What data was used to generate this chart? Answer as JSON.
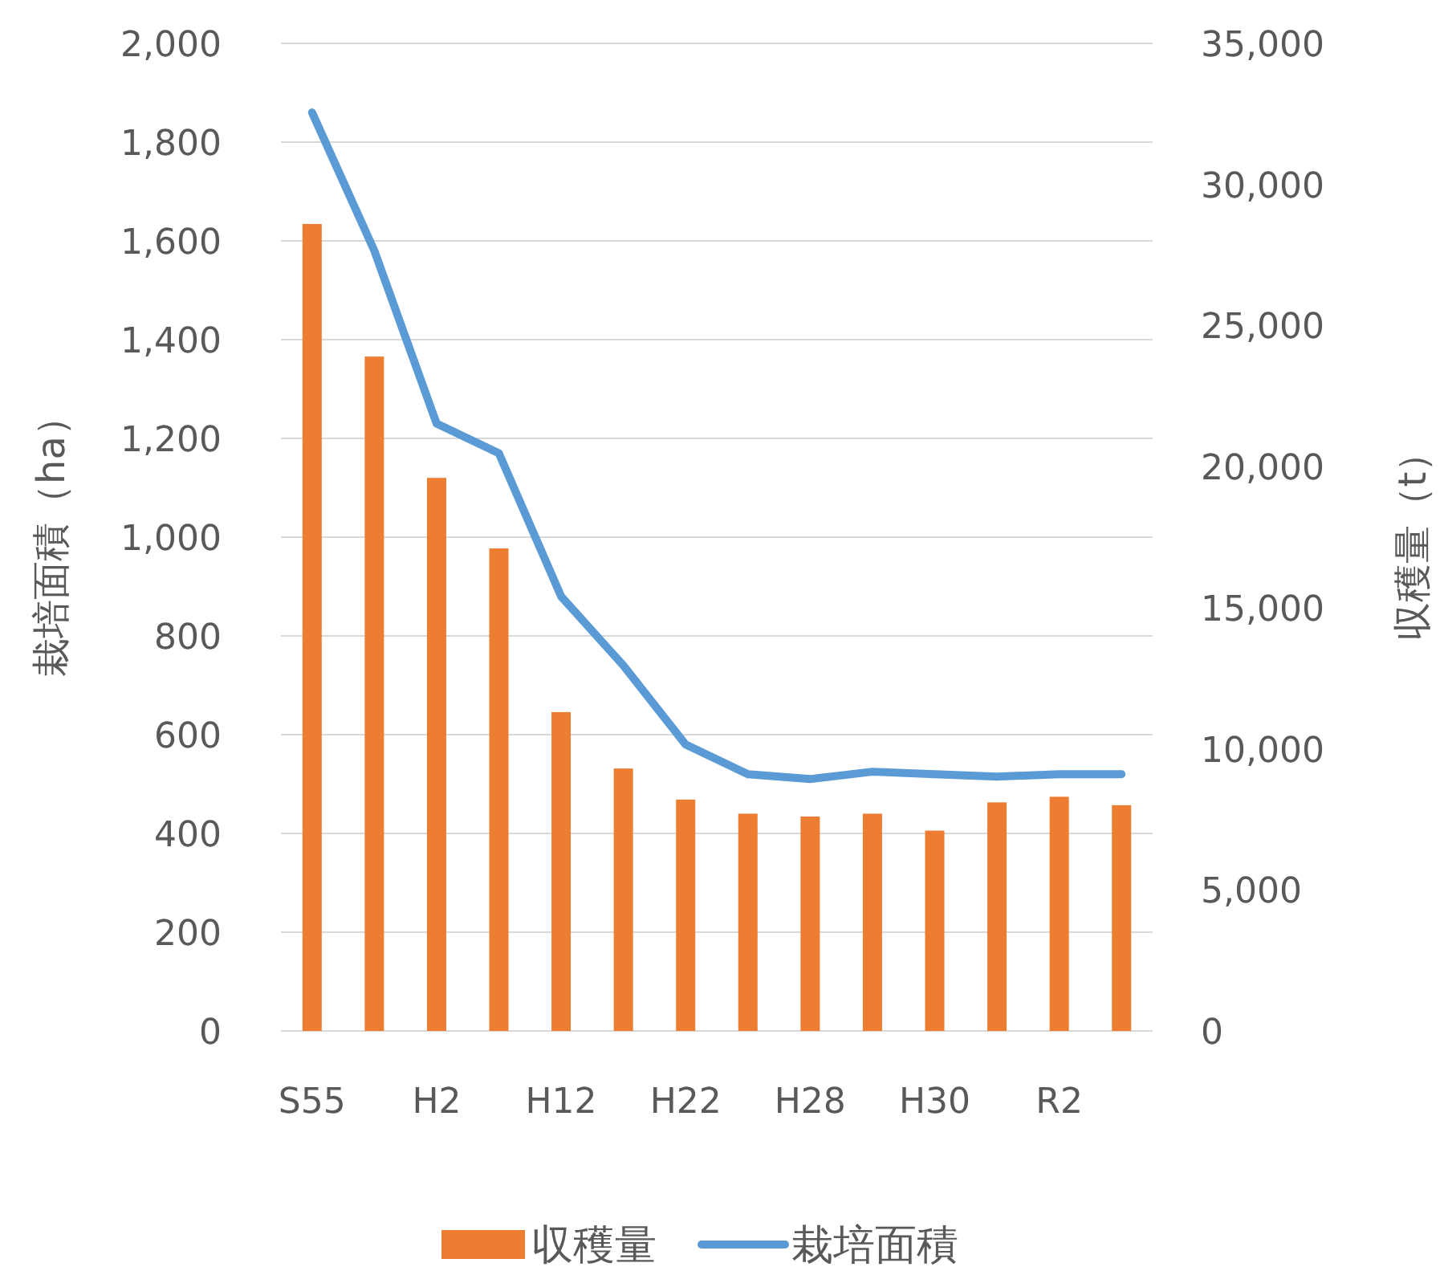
{
  "chart_data": {
    "type": "bar",
    "categories": [
      "S55",
      null,
      "H2",
      null,
      "H12",
      null,
      "H22",
      null,
      "H28",
      null,
      "H30",
      null,
      "R2",
      null
    ],
    "ylabel": "栽培面積（ha）",
    "y2label": "収穫量（t）",
    "ylim": [
      0,
      2000
    ],
    "yticks": [
      0,
      200,
      400,
      600,
      800,
      {
        "value": 1000,
        "label": "1,000"
      },
      {
        "value": 1200,
        "label": "1,200"
      },
      {
        "value": 1400,
        "label": "1,400"
      },
      {
        "value": 1600,
        "label": "1,600"
      },
      {
        "value": 1800,
        "label": "1,800"
      },
      {
        "value": 2000,
        "label": "2,000"
      }
    ],
    "y2lim": [
      0,
      35000
    ],
    "y2ticks": [
      0,
      {
        "value": 5000,
        "label": "5,000"
      },
      {
        "value": 10000,
        "label": "10,000"
      },
      {
        "value": 15000,
        "label": "15,000"
      },
      {
        "value": 20000,
        "label": "20,000"
      },
      {
        "value": 25000,
        "label": "25,000"
      },
      {
        "value": 30000,
        "label": "30,000"
      },
      {
        "value": 35000,
        "label": "35,000"
      }
    ],
    "series": [
      {
        "name": "収穫量",
        "axis": "y2",
        "color": "#ed7d31",
        "values": [
          28600,
          23900,
          19600,
          17100,
          11300,
          9300,
          8200,
          7700,
          7600,
          7700,
          7100,
          8100,
          8300,
          8000
        ]
      },
      {
        "name": "栽培面積",
        "type": "line",
        "color": "#5b9bd5",
        "values": [
          1860,
          1580,
          1230,
          1170,
          880,
          740,
          580,
          520,
          510,
          525,
          520,
          515,
          520,
          520
        ]
      }
    ],
    "legend": "bottom",
    "grid": "y"
  }
}
